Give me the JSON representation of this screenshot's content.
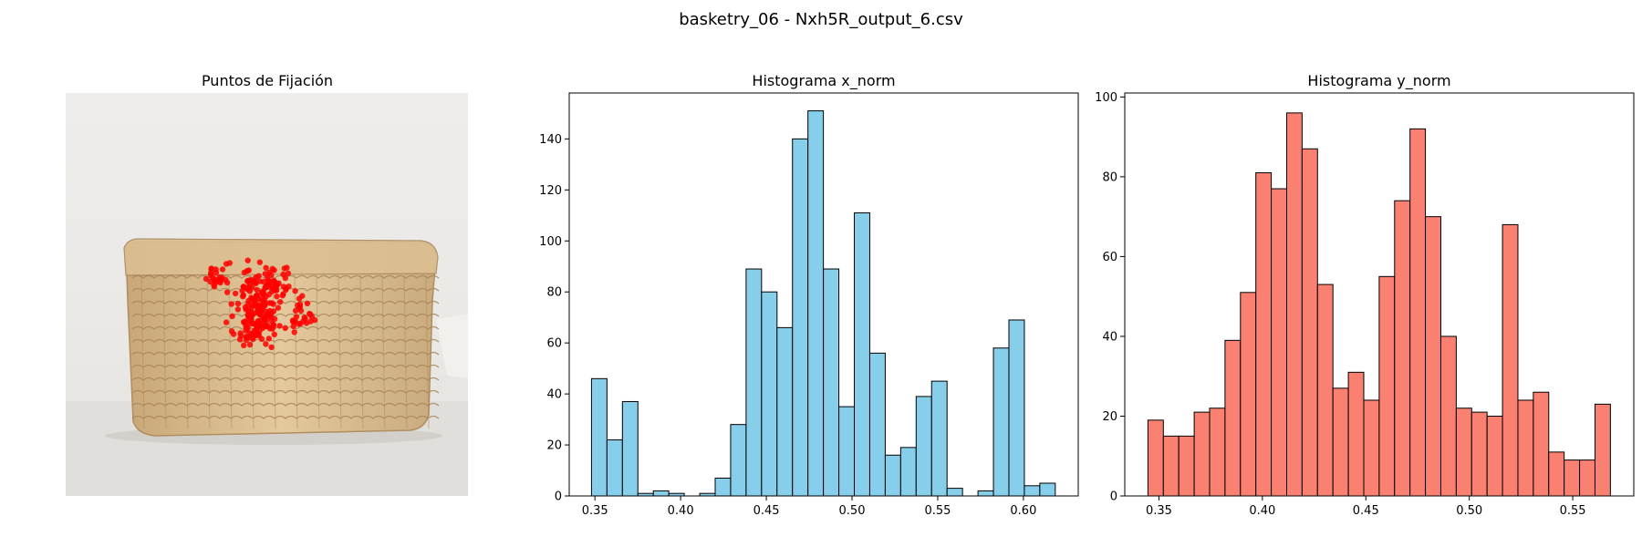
{
  "figure": {
    "suptitle": "basketry_06 - Nxh5R_output_6.csv"
  },
  "chart_data": [
    {
      "type": "image_scatter",
      "title": "Puntos de Fijación",
      "image_subject": "woven wicker basket box on light background",
      "point_color": "#ff0000",
      "axes_visible": false
    },
    {
      "type": "bar",
      "subtype": "histogram",
      "title": "Histograma x_norm",
      "xlabel": "",
      "ylabel": "",
      "color": "#87ceeb",
      "edgecolor": "#000000",
      "xlim": [
        0.335,
        0.632
      ],
      "ylim": [
        0,
        158
      ],
      "xticks": [
        0.35,
        0.4,
        0.45,
        0.5,
        0.55,
        0.6
      ],
      "xtick_labels": [
        "0.35",
        "0.40",
        "0.45",
        "0.50",
        "0.55",
        "0.60"
      ],
      "yticks": [
        0,
        20,
        40,
        60,
        80,
        100,
        120,
        140
      ],
      "bin_start": 0.348,
      "bin_width": 0.00902,
      "values": [
        46,
        22,
        37,
        1,
        2,
        1,
        0,
        1,
        7,
        28,
        89,
        80,
        66,
        140,
        151,
        89,
        35,
        111,
        56,
        16,
        19,
        39,
        45,
        3,
        0,
        2,
        58,
        69,
        4,
        5
      ]
    },
    {
      "type": "bar",
      "subtype": "histogram",
      "title": "Histograma y_norm",
      "xlabel": "",
      "ylabel": "",
      "color": "#fa8072",
      "edgecolor": "#000000",
      "xlim": [
        0.3335,
        0.5795
      ],
      "ylim": [
        0,
        101
      ],
      "xticks": [
        0.35,
        0.4,
        0.45,
        0.5,
        0.55
      ],
      "xtick_labels": [
        "0.35",
        "0.40",
        "0.45",
        "0.50",
        "0.55"
      ],
      "yticks": [
        0,
        20,
        40,
        60,
        80,
        100
      ],
      "bin_start": 0.3447,
      "bin_width": 0.00745,
      "values": [
        19,
        15,
        15,
        21,
        22,
        39,
        51,
        81,
        77,
        96,
        87,
        53,
        27,
        31,
        24,
        55,
        74,
        92,
        70,
        40,
        22,
        21,
        20,
        68,
        24,
        26,
        11,
        9,
        9,
        23
      ]
    }
  ]
}
